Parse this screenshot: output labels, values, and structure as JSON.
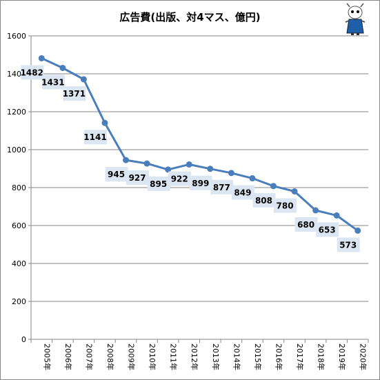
{
  "chart_data": {
    "type": "line",
    "title": "広告費(出版、対4マス、億円)",
    "xlabel": "",
    "ylabel": "",
    "categories": [
      "2005年",
      "2006年",
      "2007年",
      "2008年",
      "2009年",
      "2010年",
      "2011年",
      "2012年",
      "2013年",
      "2014年",
      "2015年",
      "2016年",
      "2017年",
      "2018年",
      "2019年",
      "2020年"
    ],
    "series": [
      {
        "values": [
          1482,
          1431,
          1371,
          1141,
          945,
          927,
          895,
          922,
          899,
          877,
          849,
          808,
          780,
          680,
          653,
          573
        ]
      }
    ],
    "data_labels": [
      "1482",
      "1431",
      "1371",
      "1141",
      "945",
      "927",
      "895",
      "922",
      "899",
      "877",
      "849",
      "808",
      "780",
      "680",
      "653",
      "573"
    ],
    "y_ticks": [
      "0",
      "200",
      "400",
      "600",
      "800",
      "1000",
      "1200",
      "1400",
      "1600"
    ],
    "ylim": [
      0,
      1600
    ],
    "grid": "horizontal",
    "legend": "none",
    "colors": {
      "line": "#4a7ebb",
      "label_box": "#dce6f2",
      "grid": "#868686"
    }
  },
  "decoration": {
    "icon": "mascot-icon"
  }
}
